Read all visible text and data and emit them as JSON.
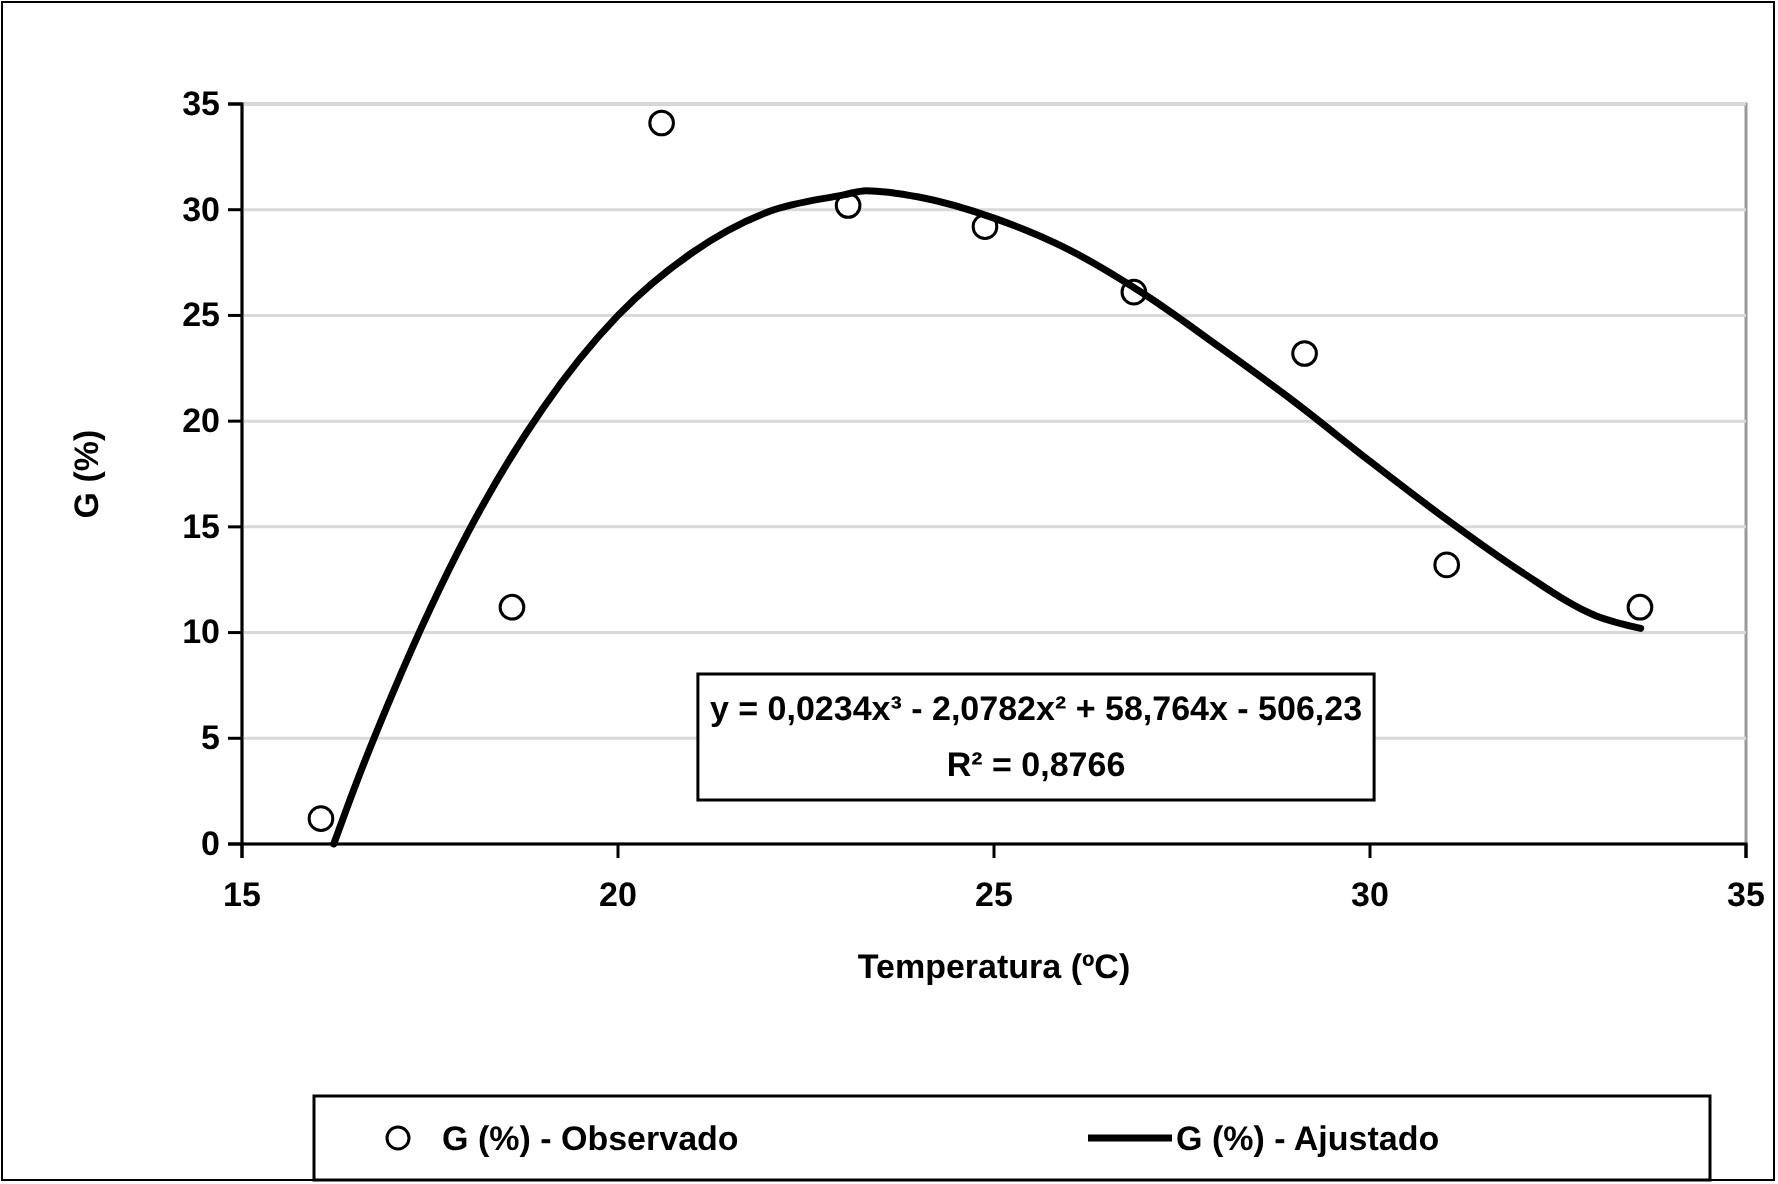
{
  "chart_data": {
    "type": "scatter",
    "xlabel": "Temperatura (ºC)",
    "ylabel": "G (%)",
    "xlim": [
      15,
      35
    ],
    "xticks": [
      15,
      20,
      25,
      30,
      35
    ],
    "ylim": [
      0,
      35
    ],
    "yticks": [
      0,
      5,
      10,
      15,
      20,
      25,
      30,
      35
    ],
    "grid": "y",
    "legend": "bottom",
    "series": [
      {
        "name": "G (%) - Observado",
        "marker": "circle",
        "color": "#000000",
        "x": [
          16.05,
          18.59,
          20.58,
          23.06,
          24.88,
          26.86,
          29.13,
          31.02,
          33.59
        ],
        "values": [
          1.2,
          11.2,
          34.1,
          30.2,
          29.2,
          26.1,
          23.2,
          13.2,
          11.2
        ]
      },
      {
        "name": "G (%) - Ajustado",
        "type": "line",
        "marker": "none",
        "line_style": "solid",
        "color": "#000000",
        "x": [
          16.22,
          16.5,
          17,
          18,
          19,
          20,
          21,
          22,
          23,
          23.3,
          24,
          25,
          26,
          27,
          28,
          29,
          30,
          31,
          32,
          33,
          33.6
        ],
        "values": [
          0,
          2.7,
          7.1,
          14.7,
          20.6,
          25,
          28,
          29.9,
          30.7,
          30.9,
          30.6,
          29.6,
          28.1,
          26,
          23.5,
          20.9,
          18.1,
          15.4,
          12.9,
          10.8,
          10.2
        ]
      }
    ],
    "annotations": [
      "y = 0,0234x³ - 2,0782x² + 58,764x - 506,23\nR² = 0,8766"
    ]
  }
}
